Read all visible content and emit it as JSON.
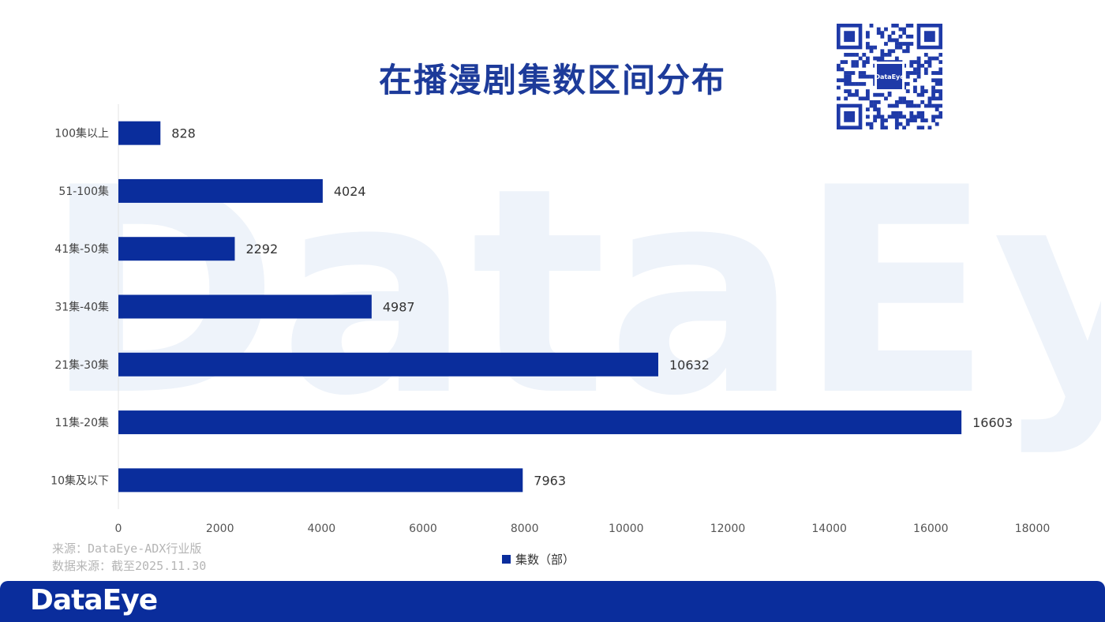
{
  "title": "在播漫剧集数区间分布",
  "brand": {
    "footer_logo": "DataEye",
    "watermark": "DataEye",
    "qr_logo": "DataEye",
    "accent": "#0a2d9c"
  },
  "source": {
    "line1": "来源：DataEye-ADX行业版",
    "line2": "数据来源：截至2025.11.30"
  },
  "chart_data": {
    "type": "bar",
    "orientation": "horizontal",
    "categories": [
      "100集以上",
      "51-100集",
      "41集-50集",
      "31集-40集",
      "21集-30集",
      "11集-20集",
      "10集及以下"
    ],
    "series": [
      {
        "name": "集数（部）",
        "values": [
          828,
          4024,
          2292,
          4987,
          10632,
          16603,
          7963
        ],
        "color": "#0a2d9c"
      }
    ],
    "xlim": [
      0,
      18000
    ],
    "xticks": [
      0,
      2000,
      4000,
      6000,
      8000,
      10000,
      12000,
      14000,
      16000,
      18000
    ],
    "grid": false,
    "legend": "bottom-center",
    "data_labels": true
  }
}
